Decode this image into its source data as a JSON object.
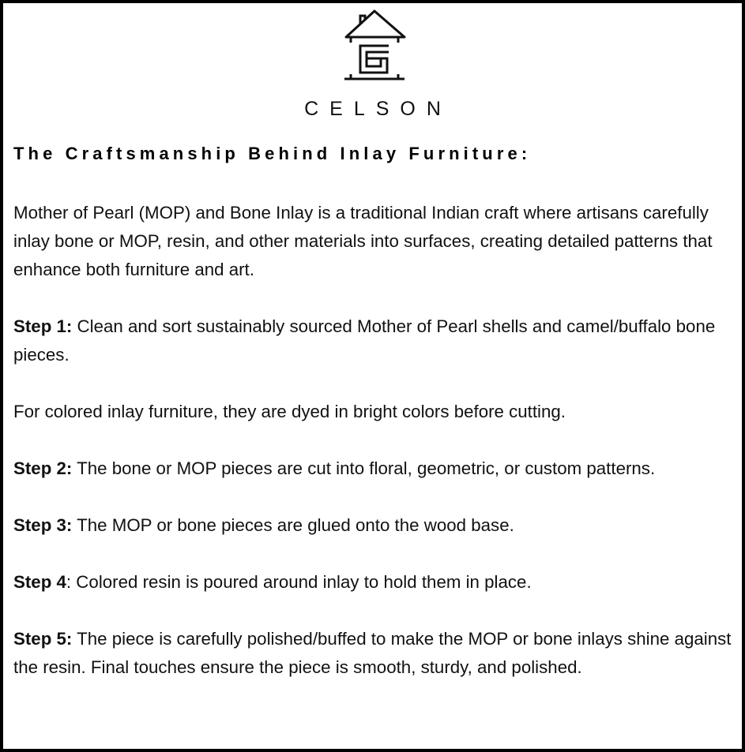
{
  "brand": {
    "name": "CELSON",
    "logo_icon": "house-s-logo-icon"
  },
  "title": "The Craftsmanship Behind Inlay Furniture:",
  "intro": "Mother of Pearl (MOP) and Bone Inlay is a traditional Indian craft where artisans carefully inlay bone or MOP, resin, and other materials into surfaces, creating detailed patterns that enhance both furniture and art.",
  "steps": [
    {
      "label": "Step 1:",
      "text": " Clean and sort sustainably sourced Mother of Pearl shells and camel/buffalo bone pieces."
    },
    {
      "note": "For colored inlay furniture, they are dyed in bright colors before cutting."
    },
    {
      "label": "Step 2:",
      "text": " The bone or MOP pieces are cut into floral, geometric, or custom patterns."
    },
    {
      "label": "Step 3:",
      "text": " The MOP or bone pieces are glued onto the wood base."
    },
    {
      "label": "Step 4",
      "text": ": Colored resin is poured around inlay to hold them in place."
    },
    {
      "label": "Step 5:",
      "text": " The piece is carefully polished/buffed to make the MOP or bone inlays shine against the resin. Final touches ensure the piece is smooth, sturdy, and polished."
    }
  ]
}
